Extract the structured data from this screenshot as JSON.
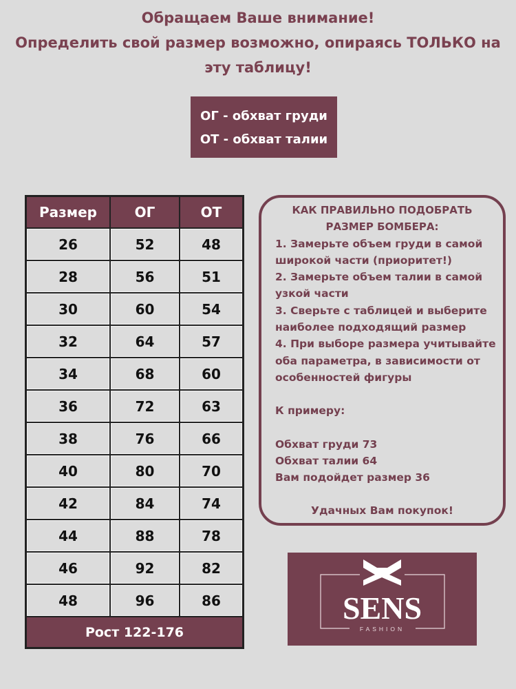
{
  "header": {
    "lines": [
      "Обращаем Ваше внимание!",
      "Определить свой размер возможно, опираясь ТОЛЬКО на",
      "эту  таблицу!"
    ]
  },
  "legend": {
    "lines": [
      "ОГ - обхват груди",
      "ОТ - обхват талии"
    ]
  },
  "table": {
    "headers": [
      "Размер",
      "ОГ",
      "ОТ"
    ],
    "rows": [
      [
        "26",
        "52",
        "48"
      ],
      [
        "28",
        "56",
        "51"
      ],
      [
        "30",
        "60",
        "54"
      ],
      [
        "32",
        "64",
        "57"
      ],
      [
        "34",
        "68",
        "60"
      ],
      [
        "36",
        "72",
        "63"
      ],
      [
        "38",
        "76",
        "66"
      ],
      [
        "40",
        "80",
        "70"
      ],
      [
        "42",
        "84",
        "74"
      ],
      [
        "44",
        "88",
        "78"
      ],
      [
        "46",
        "92",
        "82"
      ],
      [
        "48",
        "96",
        "86"
      ]
    ],
    "footer": "Рост 122-176"
  },
  "info": {
    "heading": [
      "КАК ПРАВИЛЬНО ПОДОБРАТЬ",
      "РАЗМЕР БОМБЕРА:"
    ],
    "steps": [
      "1. Замерьте объем груди в самой",
      "широкой части (приоритет!)",
      "2. Замерьте объем талии в самой",
      "узкой части",
      "3. Сверьте с таблицей и выберите",
      "наиболее подходящий размер",
      "4. При выборе размера учитывайте",
      "оба параметра, в зависимости от",
      "особенностей фигуры"
    ],
    "example_label": "К примеру:",
    "example": [
      "Обхват груди 73",
      "Обхват талии 64",
      "Вам подойдет размер 36"
    ],
    "closing": "Удачных Вам покупок!"
  },
  "logo": {
    "brand": "SENS",
    "sub": "FASHION"
  },
  "colors": {
    "accent": "#74404f",
    "background": "#dcdcdc"
  }
}
